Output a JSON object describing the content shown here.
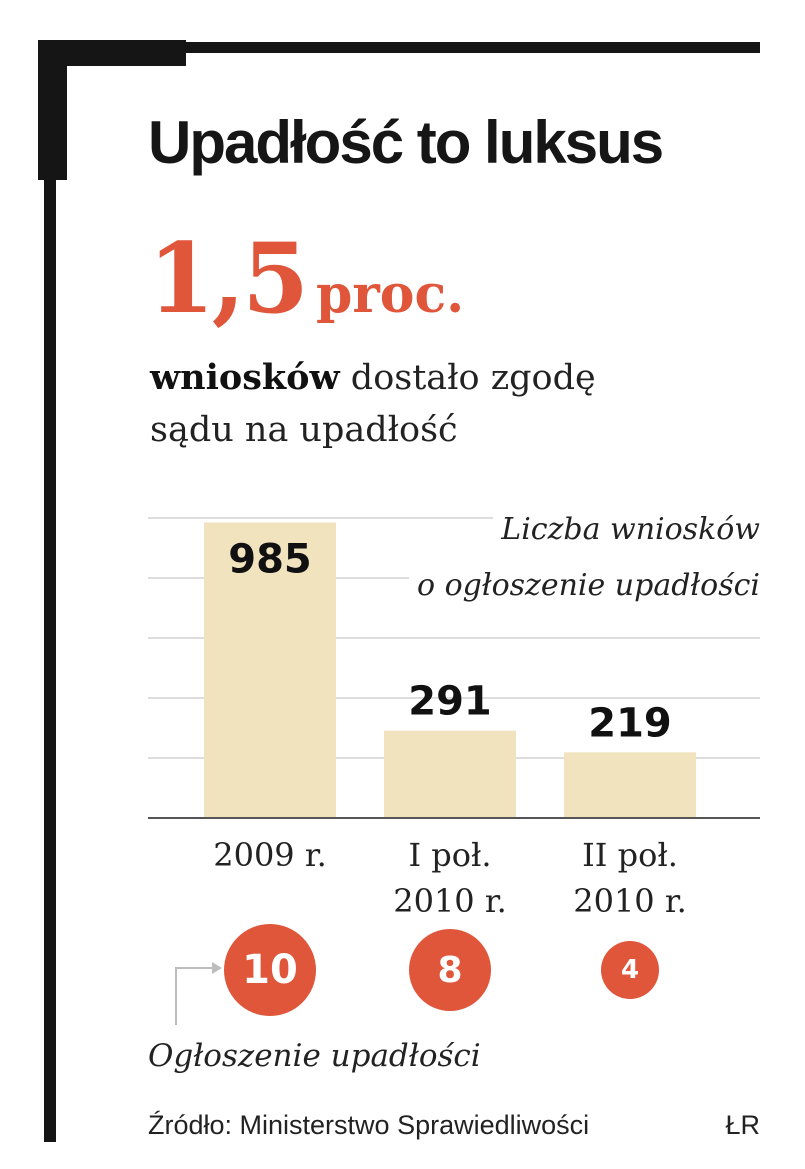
{
  "title": "Upadłość to luksus",
  "highlight": {
    "number": "1,5",
    "unit": "proc."
  },
  "subtitle": {
    "bold": "wniosków",
    "rest_line1": "dostało zgodę",
    "line2": "sądu na upadłość"
  },
  "chart_data": {
    "type": "bar",
    "title": "Liczba wniosków o ogłoszenie upadłości",
    "title_lines": [
      "Liczba wniosków",
      "o ogłoszenie upadłości"
    ],
    "categories": [
      "2009 r.",
      "I poł. 2010 r.",
      "II poł. 2010 r."
    ],
    "category_lines": [
      [
        "2009 r."
      ],
      [
        "I poł.",
        "2010 r."
      ],
      [
        "II poł.",
        "2010 r."
      ]
    ],
    "values": [
      985,
      291,
      219
    ],
    "value_labels": [
      "985",
      "291",
      "219"
    ],
    "ylim": [
      0,
      1000
    ],
    "grid": true,
    "bar_color": "#f2e3bf",
    "secondary": {
      "label": "Ogłoszenie upadłości",
      "values": [
        10,
        8,
        4
      ],
      "value_labels": [
        "10",
        "8",
        "4"
      ],
      "color": "#e0563a"
    }
  },
  "source": "Źródło: Ministerstwo Sprawiedliwości",
  "credit": "ŁR",
  "colors": {
    "accent": "#e0563a",
    "bar": "#f2e3bf",
    "frame": "#151515",
    "grid": "#dddddd"
  }
}
